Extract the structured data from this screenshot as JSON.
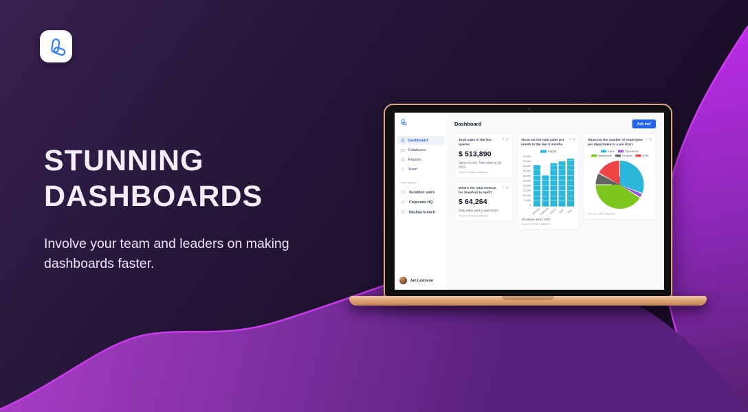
{
  "hero": {
    "title_line1": "STUNNING",
    "title_line2": "DASHBOARDS",
    "subtitle": "Involve your team and leaders on making dashboards faster."
  },
  "app": {
    "sidebar": {
      "nav": [
        {
          "label": "Dashboard",
          "icon": "home-icon",
          "active": true
        },
        {
          "label": "Databases",
          "icon": "folder-icon",
          "active": false
        },
        {
          "label": "Reports",
          "icon": "chart-icon",
          "active": false
        },
        {
          "label": "Team",
          "icon": "people-icon",
          "active": false
        }
      ],
      "teams_label": "Your teams",
      "teams": [
        {
          "initial": "S",
          "label": "Scranton sales"
        },
        {
          "initial": "C",
          "label": "Corporate HQ"
        },
        {
          "initial": "N",
          "label": "Nashua branch"
        }
      ],
      "user": {
        "name": "Jan Levinson"
      }
    },
    "header": {
      "title": "Dashboard",
      "ask_button_label": "Ask me!"
    },
    "cards": {
      "kpi1": {
        "title": "Total sales in the last quarter",
        "value": "$ 513,890",
        "description": "Value in USD. Total sales in Q2 2023.",
        "source": "Source: Retail database"
      },
      "kpi2": {
        "title": "What's the total revenue for Stamford in April?",
        "value": "$ 64,264",
        "description": "Only sales paid in April 2023.",
        "source": "Source: Retail database"
      }
    }
  },
  "icons": {
    "edit": "✎",
    "collapse": "⊟"
  },
  "colors": {
    "accent_blue": "#2563eb",
    "cyan": "#2ab7d9",
    "purple": "#9b51e0",
    "green": "#7cc61e",
    "gray": "#636363",
    "red": "#ee4444",
    "wave_magenta": "#cf3df2"
  },
  "chart_data": [
    {
      "type": "bar",
      "title": "Show me the total sales per month in the last 5 months",
      "categories": [
        "January",
        "February",
        "March",
        "April",
        "May"
      ],
      "series": [
        {
          "name": "Month",
          "values": [
            40500,
            30500,
            42000,
            44000,
            46500
          ]
        }
      ],
      "ylim": [
        0,
        50000
      ],
      "ytick_step": 5000,
      "bar_color": "#2ab7d9",
      "grid": true,
      "legend_position": "top",
      "note": "All values are in USD.",
      "source": "Source: Retail database"
    },
    {
      "type": "pie",
      "title": "Show me the number of employees per department in a pie chart",
      "labels": [
        "Sales",
        "Operations",
        "Warehouse",
        "Finance",
        "GTM"
      ],
      "values": [
        31,
        3,
        41,
        8,
        17
      ],
      "colors": [
        "#2ab7d9",
        "#9b51e0",
        "#7cc61e",
        "#636363",
        "#ee4444"
      ],
      "legend_position": "top",
      "source": "Source: HR integration"
    }
  ]
}
